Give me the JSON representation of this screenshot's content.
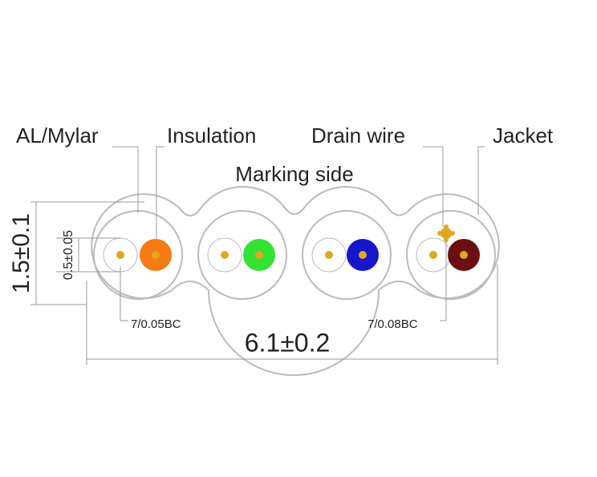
{
  "callouts": [
    "AL/Mylar",
    "Insulation",
    "Drain wire",
    "Jacket"
  ],
  "marking_side": "Marking side",
  "dimensions": {
    "height": "1.5±0.1",
    "inner": "0.5±0.05",
    "width": "6.1±0.2"
  },
  "conductors": {
    "signal": "7/0.05BC",
    "drain": "7/0.08BC"
  }
}
